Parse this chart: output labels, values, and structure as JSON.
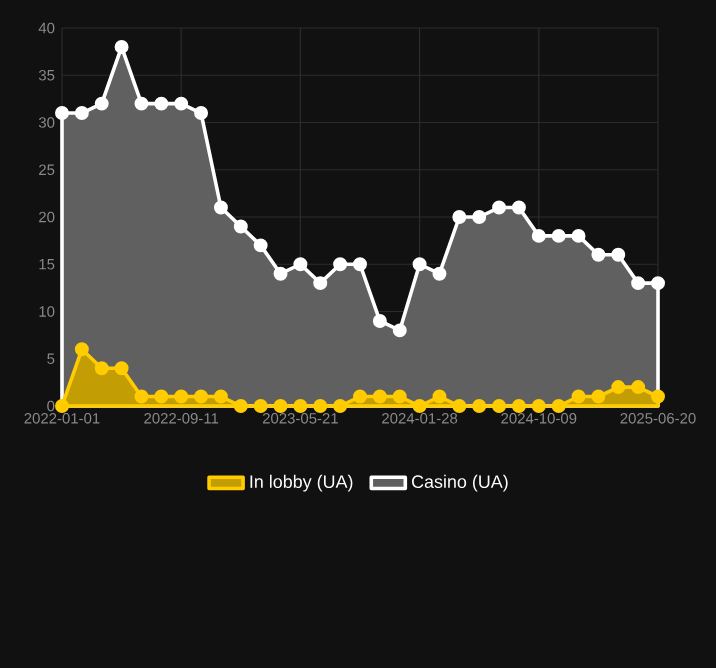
{
  "chart_data": {
    "type": "area",
    "categories": [
      "2022-01-01",
      null,
      null,
      null,
      null,
      null,
      "2022-09-11",
      null,
      null,
      null,
      null,
      null,
      "2023-05-21",
      null,
      null,
      null,
      null,
      null,
      "2024-01-28",
      null,
      null,
      null,
      null,
      null,
      "2024-10-09",
      null,
      null,
      null,
      null,
      null,
      "2025-06-20"
    ],
    "series": [
      {
        "name": "In lobby (UA)",
        "color": "#ffcc00",
        "values": [
          0,
          6,
          4,
          4,
          1,
          1,
          1,
          1,
          1,
          0,
          0,
          0,
          0,
          0,
          0,
          1,
          1,
          1,
          0,
          1,
          0,
          0,
          0,
          0,
          0,
          0,
          1,
          1,
          2,
          2,
          1
        ]
      },
      {
        "name": "Casino (UA)",
        "color": "#ffffff",
        "values": [
          31,
          31,
          32,
          38,
          32,
          32,
          32,
          31,
          21,
          19,
          17,
          14,
          15,
          13,
          15,
          15,
          9,
          8,
          15,
          14,
          20,
          20,
          21,
          21,
          18,
          18,
          18,
          16,
          16,
          13,
          13
        ]
      }
    ],
    "ylim": [
      0,
      40
    ],
    "yticks": [
      0,
      5,
      10,
      15,
      20,
      25,
      30,
      35,
      40
    ],
    "grid": true,
    "legend": "bottom",
    "marker": "circle"
  }
}
